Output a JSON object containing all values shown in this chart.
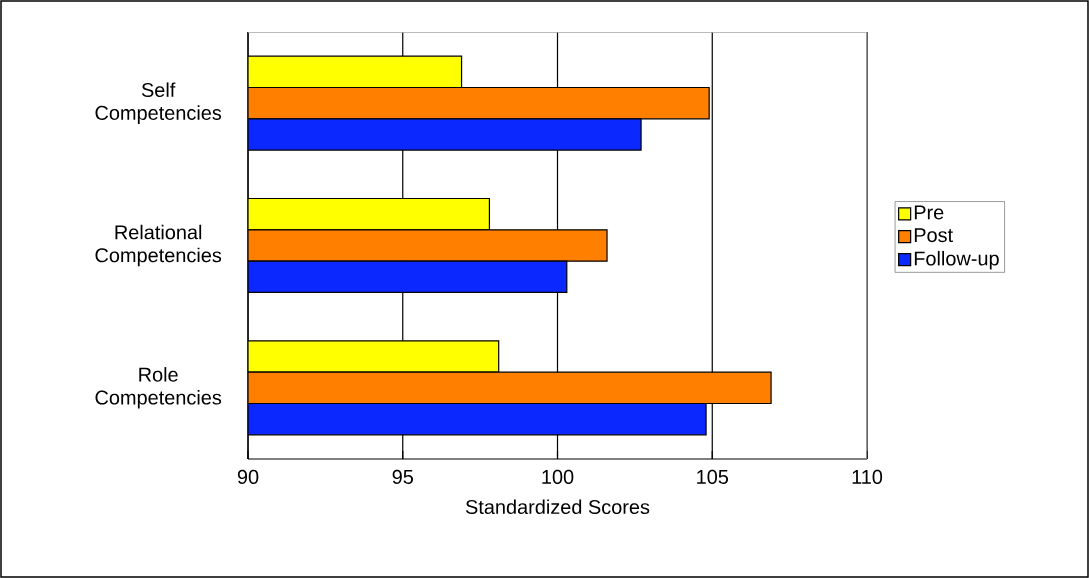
{
  "chart_data": {
    "type": "bar",
    "orientation": "horizontal",
    "xlabel": "Standardized Scores",
    "categories": [
      "Self Competencies",
      "Relational Competencies",
      "Role Competencies"
    ],
    "series": [
      {
        "name": "Pre",
        "color": "#ffff00",
        "values": [
          96.9,
          97.8,
          98.1
        ]
      },
      {
        "name": "Post",
        "color": "#ff8000",
        "values": [
          104.9,
          101.6,
          106.9
        ]
      },
      {
        "name": "Follow-up",
        "color": "#0a28ff",
        "values": [
          102.7,
          100.3,
          104.8
        ]
      }
    ],
    "xlim": [
      90,
      110
    ],
    "xticks": [
      90,
      95,
      100,
      105,
      110
    ],
    "grid": "x",
    "legend": "right"
  }
}
